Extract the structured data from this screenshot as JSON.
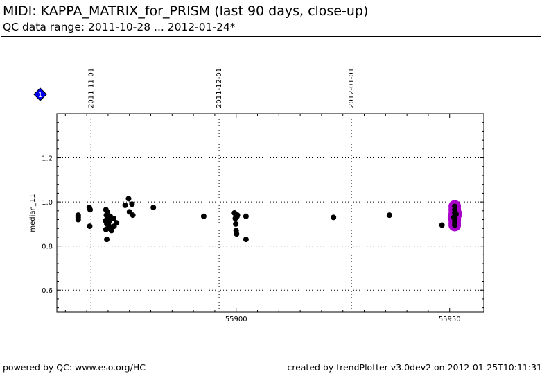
{
  "header": {
    "title": "MIDI: KAPPA_MATRIX_for_PRISM (last 90 days, close-up)",
    "subtitle": "QC data range: 2011-10-28 ... 2012-01-24*"
  },
  "footer": {
    "left": "powered by QC: www.eso.org/HC",
    "right": "created by trendPlotter v3.0dev2 on 2012-01-25T10:11:31"
  },
  "marker": {
    "label": "1",
    "color": "#0000ee",
    "icon": "diamond-icon"
  },
  "chart_data": {
    "type": "scatter",
    "title": "",
    "xlabel": "",
    "ylabel": "median_11",
    "xlim": [
      55858,
      55958
    ],
    "ylim": [
      0.5,
      1.4
    ],
    "x_ticks": [
      {
        "value": 55900,
        "label": "55900"
      },
      {
        "value": 55950,
        "label": "55950"
      }
    ],
    "y_ticks": [
      {
        "value": 0.6,
        "label": "0.6"
      },
      {
        "value": 0.8,
        "label": "0.8"
      },
      {
        "value": 1.0,
        "label": "1.0"
      },
      {
        "value": 1.2,
        "label": "1.2"
      }
    ],
    "date_ticks": [
      {
        "value": 55866,
        "label": "2011-11-01"
      },
      {
        "value": 55896,
        "label": "2011-12-01"
      },
      {
        "value": 55927,
        "label": "2012-01-01"
      }
    ],
    "grid": true,
    "point_color": "#000000",
    "highlight_color": "#aa00cc",
    "series": [
      {
        "values": [
          [
            55863,
            0.94
          ],
          [
            55863,
            0.93
          ],
          [
            55863,
            0.92
          ],
          [
            55865.6,
            0.975
          ],
          [
            55865.8,
            0.965
          ],
          [
            55865.7,
            0.89
          ],
          [
            55869.5,
            0.965
          ],
          [
            55869.8,
            0.955
          ],
          [
            55869.6,
            0.94
          ],
          [
            55869.9,
            0.93
          ],
          [
            55869.4,
            0.915
          ],
          [
            55870.2,
            0.91
          ],
          [
            55870.5,
            0.935
          ],
          [
            55870.8,
            0.925
          ],
          [
            55869.7,
            0.9
          ],
          [
            55870.1,
            0.895
          ],
          [
            55870.6,
            0.885
          ],
          [
            55869.5,
            0.875
          ],
          [
            55870.3,
            0.88
          ],
          [
            55870.8,
            0.87
          ],
          [
            55871.3,
            0.925
          ],
          [
            55871.4,
            0.89
          ],
          [
            55872.0,
            0.905
          ],
          [
            55869.7,
            0.83
          ],
          [
            55874.0,
            0.985
          ],
          [
            55874.8,
            1.015
          ],
          [
            55875.6,
            0.99
          ],
          [
            55875.0,
            0.955
          ],
          [
            55875.8,
            0.94
          ],
          [
            55880.6,
            0.975
          ],
          [
            55892.4,
            0.935
          ],
          [
            55899.6,
            0.95
          ],
          [
            55899.8,
            0.925
          ],
          [
            55900.2,
            0.935
          ],
          [
            55900.3,
            0.94
          ],
          [
            55899.9,
            0.9
          ],
          [
            55900.0,
            0.87
          ],
          [
            55900.1,
            0.855
          ],
          [
            55902.3,
            0.935
          ],
          [
            55902.3,
            0.83
          ],
          [
            55922.8,
            0.93
          ],
          [
            55935.9,
            0.94
          ],
          [
            55948.2,
            0.895
          ]
        ]
      },
      {
        "highlighted": true,
        "values": [
          [
            55951.2,
            0.98
          ],
          [
            55951.2,
            0.965
          ],
          [
            55951.2,
            0.95
          ],
          [
            55951.2,
            0.935
          ],
          [
            55951.2,
            0.92
          ],
          [
            55951.2,
            0.905
          ],
          [
            55951.2,
            0.895
          ],
          [
            55951.5,
            0.945
          ],
          [
            55951.0,
            0.93
          ]
        ]
      }
    ]
  }
}
